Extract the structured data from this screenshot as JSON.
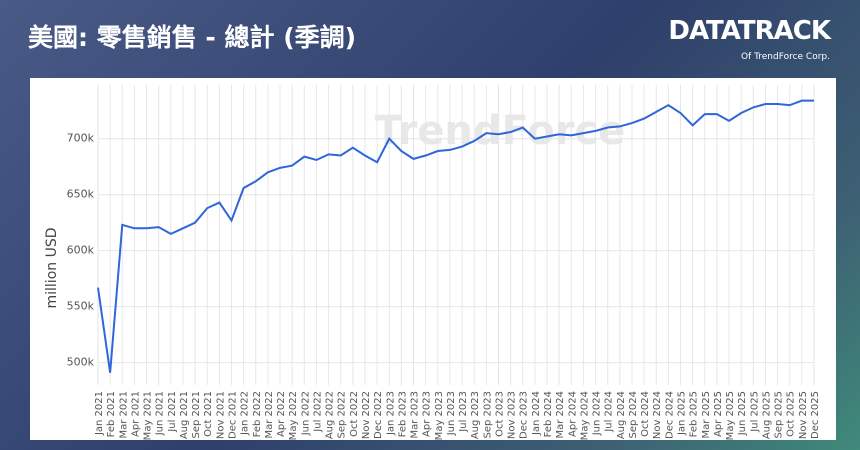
{
  "header": {
    "title": "美國: 零售銷售 - 總計 (季調)",
    "logo": "DATATRACK",
    "logo_sub": "Of TrendForce Corp."
  },
  "chart_data": {
    "type": "line",
    "watermark": "TrendForce",
    "y_label": "million USD",
    "color": "#2f66d8",
    "grid": true,
    "categories": [
      "Jan 2021",
      "Feb 2021",
      "Mar 2021",
      "Apr 2021",
      "May 2021",
      "Jun 2021",
      "Jul 2021",
      "Aug 2021",
      "Sep 2021",
      "Oct 2021",
      "Nov 2021",
      "Dec 2021",
      "Jan 2022",
      "Feb 2022",
      "Mar 2022",
      "Apr 2022",
      "May 2022",
      "Jun 2022",
      "Jul 2022",
      "Aug 2022",
      "Sep 2022",
      "Oct 2022",
      "Nov 2022",
      "Dec 2022",
      "Jan 2023",
      "Feb 2023",
      "Mar 2023",
      "Apr 2023",
      "May 2023",
      "Jun 2023",
      "Jul 2023",
      "Aug 2023",
      "Sep 2023",
      "Oct 2023",
      "Nov 2023",
      "Dec 2023",
      "Jan 2024",
      "Feb 2024",
      "Mar 2024",
      "Apr 2024",
      "May 2024",
      "Jun 2024",
      "Jul 2024",
      "Aug 2024",
      "Sep 2024",
      "Oct 2024",
      "Nov 2024",
      "Dec 2024",
      "Jan 2025",
      "Feb 2025",
      "Mar 2025",
      "Apr 2025",
      "May 2025",
      "Jun 2025",
      "Jul 2025",
      "Aug 2025",
      "Sep 2025",
      "Oct 2025",
      "Nov 2025",
      "Dec 2025"
    ],
    "values": [
      567000,
      491000,
      623000,
      620000,
      620000,
      621000,
      615000,
      620000,
      625000,
      638000,
      643000,
      627000,
      656000,
      662000,
      670000,
      674000,
      676000,
      684000,
      681000,
      686000,
      685000,
      692000,
      685000,
      679000,
      700000,
      689000,
      682000,
      685000,
      689000,
      690000,
      693000,
      698000,
      705000,
      704000,
      706000,
      710000,
      700000,
      702000,
      704000,
      703000,
      705000,
      707000,
      710000,
      711000,
      714000,
      718000,
      724000,
      730000,
      723000,
      712000,
      722000,
      722000,
      716000,
      723000,
      728000,
      731000,
      731000,
      730000,
      734000,
      734000
    ],
    "ylim": [
      480000,
      748000
    ],
    "yticks": [
      {
        "value": 500000,
        "label": "500k"
      },
      {
        "value": 550000,
        "label": "550k"
      },
      {
        "value": 600000,
        "label": "600k"
      },
      {
        "value": 650000,
        "label": "650k"
      },
      {
        "value": 700000,
        "label": "700k"
      }
    ]
  }
}
